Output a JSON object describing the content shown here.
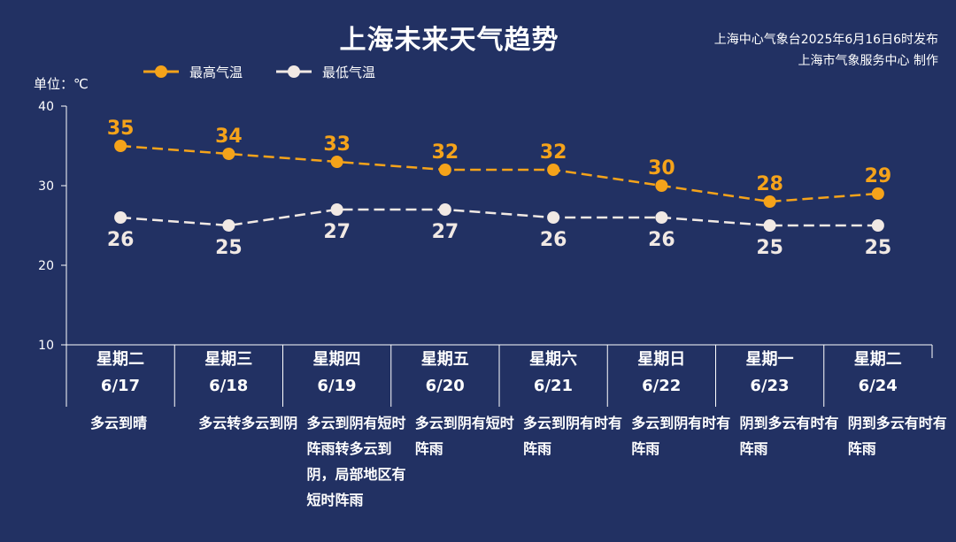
{
  "title": "上海未来天气趋势",
  "issuer": {
    "line1": "上海中心气象台2025年6月16日6时发布",
    "line2": "上海市气象服务中心 制作"
  },
  "unit_label": "单位：℃",
  "legend": {
    "max_label": "最高气温",
    "min_label": "最低气温"
  },
  "colors": {
    "background": "#223163",
    "max_series": "#f5a31a",
    "min_series": "#f1e9e4",
    "text": "#ffffff"
  },
  "days": [
    {
      "weekday": "星期二",
      "date": "6/17",
      "condition": "多云到晴"
    },
    {
      "weekday": "星期三",
      "date": "6/18",
      "condition": "多云转多云到阴"
    },
    {
      "weekday": "星期四",
      "date": "6/19",
      "condition": "多云到阴有短时阵雨转多云到阴，局部地区有短时阵雨"
    },
    {
      "weekday": "星期五",
      "date": "6/20",
      "condition": "多云到阴有短时阵雨"
    },
    {
      "weekday": "星期六",
      "date": "6/21",
      "condition": "多云到阴有时有阵雨"
    },
    {
      "weekday": "星期日",
      "date": "6/22",
      "condition": "多云到阴有时有阵雨"
    },
    {
      "weekday": "星期一",
      "date": "6/23",
      "condition": "阴到多云有时有阵雨"
    },
    {
      "weekday": "星期二",
      "date": "6/24",
      "condition": "阴到多云有时有阵雨"
    }
  ],
  "chart_data": {
    "type": "line",
    "title": "上海未来天气趋势",
    "ylabel": "单位：℃",
    "ylim": [
      10,
      40
    ],
    "yticks": [
      10,
      20,
      30,
      40
    ],
    "categories": [
      "6/17",
      "6/18",
      "6/19",
      "6/20",
      "6/21",
      "6/22",
      "6/23",
      "6/24"
    ],
    "series": [
      {
        "name": "最高气温",
        "values": [
          35,
          34,
          33,
          32,
          32,
          30,
          28,
          29
        ],
        "label_position": "above"
      },
      {
        "name": "最低气温",
        "values": [
          26,
          25,
          27,
          27,
          26,
          26,
          25,
          25
        ],
        "label_position": "below"
      }
    ],
    "line_style": "dashed",
    "legend_position": "top-left",
    "grid": false
  }
}
